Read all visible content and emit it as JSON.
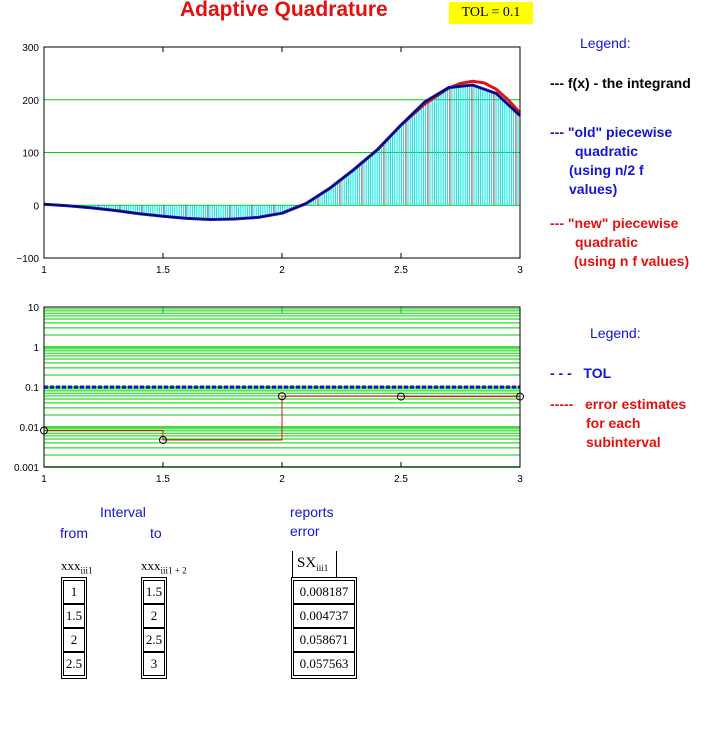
{
  "title": "Adaptive Quadrature",
  "tol_label": "TOL = 0.1",
  "legend1": {
    "heading": "Legend:",
    "f_line": "--- f(x) - the integrand",
    "old_lines": [
      "--- \"old\" piecewise",
      "quadratic",
      "(using n/2 f",
      "values)"
    ],
    "new_lines": [
      "--- \"new\" piecewise",
      "quadratic",
      "(using n f values)"
    ]
  },
  "legend2": {
    "heading": "Legend:",
    "tol_line": "- - -   TOL",
    "err_lines": [
      "-----   error estimates",
      "for each",
      "subinterval"
    ]
  },
  "colors": {
    "old": "#1414d2",
    "new": "#e41010",
    "f": "#000000",
    "fill": "#00e5e5",
    "grid": "#00d000"
  },
  "chart_data": [
    {
      "type": "line",
      "xlim": [
        1,
        3
      ],
      "ylim": [
        -100,
        300
      ],
      "x_ticks": [
        "1",
        "1.5",
        "2",
        "2.5",
        "3"
      ],
      "y_ticks": [
        "300",
        "200",
        "100",
        "0",
        "−100"
      ],
      "x_tick_values": [
        1,
        1.5,
        2,
        2.5,
        3
      ],
      "y_tick_values": [
        300,
        200,
        100,
        0,
        -100
      ],
      "grid": true,
      "series": [
        {
          "x": [
            1.0,
            1.1,
            1.2,
            1.3,
            1.4,
            1.5,
            1.6,
            1.7,
            1.8,
            1.9,
            2.0,
            2.1,
            2.2,
            2.3,
            2.4,
            2.5,
            2.6,
            2.7,
            2.8,
            2.9,
            3.0
          ],
          "y": [
            2,
            -1,
            -5,
            -10,
            -16,
            -21,
            -25,
            -27,
            -26,
            -23,
            -15,
            3,
            32,
            67,
            105,
            152,
            196,
            223,
            228,
            212,
            170
          ]
        },
        {
          "x": [
            2.0,
            2.1,
            2.2,
            2.3,
            2.4,
            2.5,
            2.6,
            2.7,
            2.75,
            2.8,
            2.85,
            2.9,
            2.95,
            3.0
          ],
          "y": [
            -15,
            3,
            32,
            67,
            105,
            152,
            192,
            222,
            231,
            235,
            232,
            220,
            200,
            175
          ]
        }
      ]
    },
    {
      "type": "line",
      "xlim": [
        1,
        3
      ],
      "ylim": [
        0.001,
        10
      ],
      "log_y": true,
      "x_ticks": [
        "1",
        "1.5",
        "2",
        "2.5",
        "3"
      ],
      "y_ticks": [
        "10",
        "1",
        "0.1",
        "0.01",
        "0.001"
      ],
      "x_tick_values": [
        1,
        1.5,
        2,
        2.5,
        3
      ],
      "y_tick_values": [
        10,
        1,
        0.1,
        0.01,
        0.001
      ],
      "grid": true,
      "series": [
        {
          "x": [
            1,
            3
          ],
          "y": [
            0.1,
            0.1
          ]
        },
        {
          "x": [
            1,
            1.5,
            2,
            2.5,
            3
          ],
          "y": [
            0.008187,
            0.004737,
            0.058671,
            0.057563,
            0.057563
          ]
        }
      ]
    }
  ],
  "table": {
    "interval_label": "Interval",
    "from_label": "from",
    "to_label": "to",
    "reports_label": "reports",
    "error_label": "error",
    "from_header": "xxx",
    "from_header_sub": "iii1",
    "to_header": "xxx",
    "to_header_sub": "iii1 + 2",
    "err_header": "SX",
    "err_header_sub": "iii1",
    "from": [
      "1",
      "1.5",
      "2",
      "2.5"
    ],
    "to": [
      "1.5",
      "2",
      "2.5",
      "3"
    ],
    "err": [
      "0.008187",
      "0.004737",
      "0.058671",
      "0.057563"
    ]
  }
}
